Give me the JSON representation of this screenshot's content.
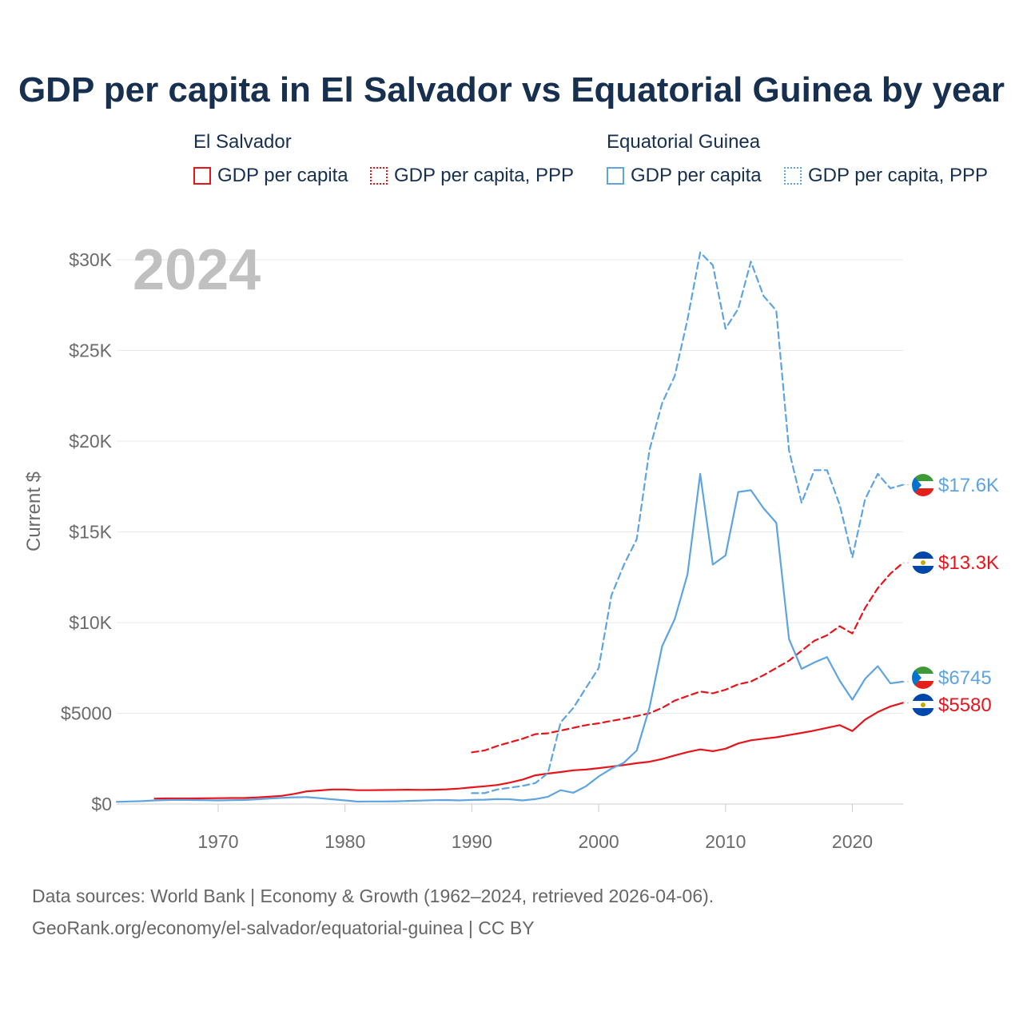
{
  "title": "GDP per capita in El Salvador vs Equatorial Guinea by year",
  "legend": {
    "groups": [
      {
        "name": "El Salvador",
        "items": [
          "GDP per capita",
          "GDP per capita, PPP"
        ]
      },
      {
        "name": "Equatorial Guinea",
        "items": [
          "GDP per capita",
          "GDP per capita, PPP"
        ]
      }
    ]
  },
  "year_badge": "2024",
  "colors": {
    "el_salvador": "#e8141b",
    "equatorial_guinea": "#5da4e0",
    "axis_text": "#6b6b6b",
    "title": "#17304f",
    "badge": "#c0c0c0"
  },
  "chart_data": {
    "type": "line",
    "title": "GDP per capita in El Salvador vs Equatorial Guinea by year",
    "xlabel": "",
    "ylabel": "Current $",
    "xlim": [
      1962,
      2024
    ],
    "ylim": [
      0,
      30000
    ],
    "x_ticks": [
      1970,
      1980,
      1990,
      2000,
      2010,
      2020
    ],
    "x_tick_labels": [
      "1970",
      "1980",
      "1990",
      "2000",
      "2010",
      "2020"
    ],
    "y_ticks": [
      0,
      5000,
      10000,
      15000,
      20000,
      25000,
      30000
    ],
    "y_tick_labels": [
      "$0",
      "$5000",
      "$10K",
      "$15K",
      "$20K",
      "$25K",
      "$30K"
    ],
    "grid": true,
    "series": [
      {
        "name": "El Salvador GDP per capita",
        "country": "El Salvador",
        "style": "solid",
        "color": "#e8141b",
        "end_label": "$5580",
        "x": [
          1965,
          1966,
          1967,
          1968,
          1969,
          1970,
          1971,
          1972,
          1973,
          1974,
          1975,
          1976,
          1977,
          1978,
          1979,
          1980,
          1981,
          1982,
          1983,
          1984,
          1985,
          1986,
          1987,
          1988,
          1989,
          1990,
          1991,
          1992,
          1993,
          1994,
          1995,
          1996,
          1997,
          1998,
          1999,
          2000,
          2001,
          2002,
          2003,
          2004,
          2005,
          2006,
          2007,
          2008,
          2009,
          2010,
          2011,
          2012,
          2013,
          2014,
          2015,
          2016,
          2017,
          2018,
          2019,
          2020,
          2021,
          2022,
          2023,
          2024
        ],
        "y": [
          300,
          310,
          310,
          310,
          315,
          320,
          330,
          330,
          360,
          400,
          450,
          560,
          700,
          750,
          800,
          800,
          760,
          760,
          770,
          780,
          790,
          780,
          790,
          810,
          850,
          920,
          980,
          1050,
          1180,
          1350,
          1580,
          1680,
          1760,
          1860,
          1900,
          1980,
          2060,
          2150,
          2250,
          2330,
          2480,
          2680,
          2860,
          3010,
          2910,
          3050,
          3340,
          3510,
          3600,
          3680,
          3800,
          3920,
          4050,
          4200,
          4350,
          4020,
          4650,
          5070,
          5380,
          5580
        ]
      },
      {
        "name": "El Salvador GDP per capita, PPP",
        "country": "El Salvador",
        "style": "dashed",
        "color": "#e8141b",
        "end_label": "$13.3K",
        "x": [
          1990,
          1991,
          1992,
          1993,
          1994,
          1995,
          1996,
          1997,
          1998,
          1999,
          2000,
          2001,
          2002,
          2003,
          2004,
          2005,
          2006,
          2007,
          2008,
          2009,
          2010,
          2011,
          2012,
          2013,
          2014,
          2015,
          2016,
          2017,
          2018,
          2019,
          2020,
          2021,
          2022,
          2023,
          2024
        ],
        "y": [
          2850,
          2950,
          3200,
          3400,
          3600,
          3850,
          3900,
          4050,
          4200,
          4350,
          4450,
          4580,
          4700,
          4850,
          5000,
          5300,
          5700,
          5950,
          6200,
          6100,
          6300,
          6600,
          6750,
          7100,
          7500,
          7900,
          8450,
          9000,
          9300,
          9800,
          9400,
          10800,
          11900,
          12700,
          13300
        ]
      },
      {
        "name": "Equatorial Guinea GDP per capita",
        "country": "Equatorial Guinea",
        "style": "solid",
        "color": "#5da4e0",
        "end_label": "$6745",
        "x": [
          1962,
          1963,
          1964,
          1965,
          1966,
          1967,
          1968,
          1969,
          1970,
          1971,
          1972,
          1973,
          1974,
          1975,
          1976,
          1977,
          1978,
          1979,
          1980,
          1981,
          1982,
          1983,
          1984,
          1985,
          1986,
          1987,
          1988,
          1989,
          1990,
          1991,
          1992,
          1993,
          1994,
          1995,
          1996,
          1997,
          1998,
          1999,
          2000,
          2001,
          2002,
          2003,
          2004,
          2005,
          2006,
          2007,
          2008,
          2009,
          2010,
          2011,
          2012,
          2013,
          2014,
          2015,
          2016,
          2017,
          2018,
          2019,
          2020,
          2021,
          2022,
          2023,
          2024
        ],
        "y": [
          120,
          140,
          160,
          200,
          220,
          230,
          220,
          210,
          200,
          210,
          220,
          260,
          300,
          340,
          370,
          380,
          320,
          260,
          200,
          130,
          140,
          140,
          150,
          170,
          190,
          210,
          220,
          200,
          230,
          240,
          270,
          260,
          200,
          270,
          400,
          760,
          620,
          980,
          1520,
          1950,
          2280,
          2950,
          5300,
          8700,
          10200,
          12650,
          18200,
          13200,
          13700,
          17200,
          17300,
          16300,
          15500,
          9100,
          7450,
          7800,
          8100,
          6800,
          5750,
          6900,
          7600,
          6650,
          6745
        ]
      },
      {
        "name": "Equatorial Guinea GDP per capita, PPP",
        "country": "Equatorial Guinea",
        "style": "dashed",
        "color": "#5da4e0",
        "end_label": "$17.6K",
        "x": [
          1990,
          1991,
          1992,
          1993,
          1994,
          1995,
          1996,
          1997,
          1998,
          1999,
          2000,
          2001,
          2002,
          2003,
          2004,
          2005,
          2006,
          2007,
          2008,
          2009,
          2010,
          2011,
          2012,
          2013,
          2014,
          2015,
          2016,
          2017,
          2018,
          2019,
          2020,
          2021,
          2022,
          2023,
          2024
        ],
        "y": [
          600,
          600,
          800,
          900,
          1000,
          1150,
          1700,
          4500,
          5300,
          6400,
          7500,
          11500,
          13200,
          14600,
          19500,
          22100,
          23600,
          26700,
          30400,
          29700,
          26200,
          27300,
          29900,
          28000,
          27200,
          19500,
          16600,
          18400,
          18400,
          16500,
          13600,
          16800,
          18200,
          17400,
          17600
        ]
      }
    ]
  },
  "footer": {
    "line1": "Data sources: World Bank | Economy & Growth (1962–2024, retrieved 2026-04-06).",
    "line2": "GeoRank.org/economy/el-salvador/equatorial-guinea | CC BY"
  }
}
